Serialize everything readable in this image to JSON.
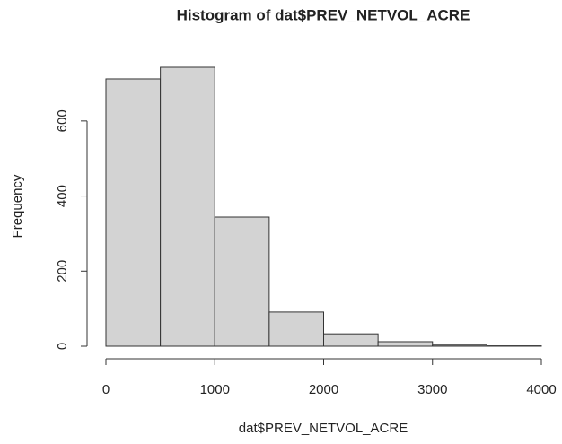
{
  "chart_data": {
    "type": "histogram",
    "title": "Histogram of dat$PREV_NETVOL_ACRE",
    "x_label": "dat$PREV_NETVOL_ACRE",
    "y_label": "Frequency",
    "bins": [
      0,
      500,
      1000,
      1500,
      2000,
      2500,
      3000,
      3500,
      4000
    ],
    "values": [
      712,
      743,
      344,
      91,
      33,
      12,
      3,
      1
    ],
    "color": "#d3d3d3",
    "xlim": [
      0,
      4000
    ],
    "xticks": [
      0,
      1000,
      2000,
      3000,
      4000
    ],
    "ylim": [
      0,
      743
    ],
    "yticks": [
      0,
      200,
      400,
      600
    ]
  }
}
